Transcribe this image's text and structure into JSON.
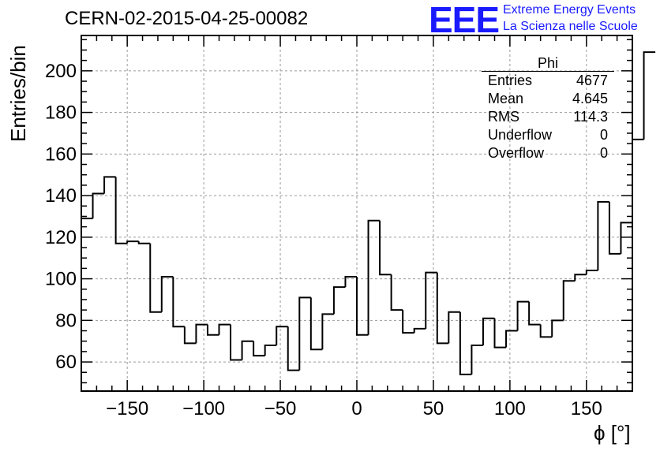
{
  "header": {
    "run_title": "CERN-02-2015-04-25-00082",
    "logo_text": "EEE",
    "logo_line1": "Extreme Energy Events",
    "logo_line2": "La Scienza nelle Scuole"
  },
  "stats_box": {
    "name": "Phi",
    "rows": [
      {
        "label": "Entries",
        "value": "4677"
      },
      {
        "label": "Mean",
        "value": "4.645"
      },
      {
        "label": "RMS",
        "value": "114.3"
      },
      {
        "label": "Underflow",
        "value": "0"
      },
      {
        "label": "Overflow",
        "value": "0"
      }
    ]
  },
  "colors": {
    "logo": "#1a1aff",
    "grid": "#9a9a9a",
    "line": "#000000"
  },
  "chart_data": {
    "type": "bar",
    "style": "step-histogram",
    "title": "CERN-02-2015-04-25-00082",
    "xlabel": "ϕ [°]",
    "ylabel": "Entries/bin",
    "xlim": [
      -180,
      180
    ],
    "ylim": [
      46,
      217
    ],
    "grid": true,
    "xticks": [
      -150,
      -100,
      -50,
      0,
      50,
      100,
      150
    ],
    "xtick_labels": [
      "−150",
      "−100",
      "−50",
      "0",
      "50",
      "100",
      "150"
    ],
    "yticks": [
      60,
      80,
      100,
      120,
      140,
      160,
      180,
      200
    ],
    "bin_width": 7.5,
    "bin_edges_start": -180,
    "values": [
      129,
      141,
      149,
      117,
      118,
      117,
      84,
      101,
      77,
      69,
      78,
      73,
      78,
      61,
      70,
      63,
      68,
      77,
      56,
      91,
      66,
      83,
      96,
      101,
      73,
      128,
      102,
      85,
      74,
      76,
      103,
      69,
      84,
      54,
      68,
      81,
      67,
      75,
      89,
      78,
      72,
      80,
      99,
      102,
      104,
      137,
      112,
      127,
      167,
      209
    ]
  }
}
